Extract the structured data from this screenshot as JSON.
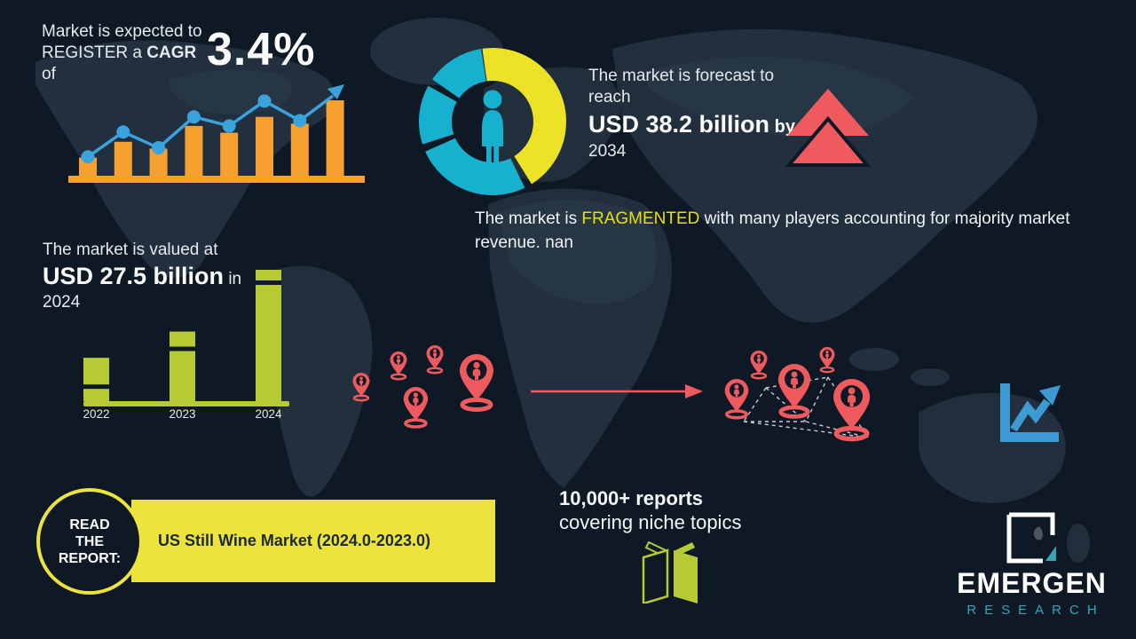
{
  "palette": {
    "background": "#0e1925",
    "map": "#233140",
    "orange": "#f6a02f",
    "blue": "#3aa3dc",
    "teal": "#17b0cf",
    "donut_yellow": "#ece327",
    "coral": "#ee5a5e",
    "green": "#b5ca33",
    "banner_yellow": "#ece33c",
    "highlight_yellow": "#e8e000",
    "logo_teal": "#36a3b8",
    "text": "#e9edef"
  },
  "icons": [
    "person-icon",
    "double-up-arrow-icon",
    "map-pin-icon",
    "line-chart-icon",
    "open-book-icon",
    "logo-mark-icon",
    "trend-arrow-icon",
    "world-map"
  ],
  "cagr": {
    "line1": "Market is expected to",
    "line2_pre": "REGISTER a ",
    "line2_bold": "CAGR",
    "line2_post": " of",
    "value": "3.4%"
  },
  "forecast": {
    "line1": "The market is forecast to",
    "line2": "reach",
    "value": "USD 38.2 billion",
    "by_label": " by",
    "year": "2034"
  },
  "fragmentation": {
    "pre": "The market is ",
    "highlight": "FRAGMENTED",
    "post": " with many players accounting for majority market revenue. nan"
  },
  "valuation": {
    "line1": "The market is valued at",
    "value": "USD 27.5 billion",
    "in_label": " in",
    "year": "2024"
  },
  "report_cta": {
    "circle_lines": [
      "READ",
      "THE",
      "REPORT:"
    ],
    "banner": "US Still Wine Market (2024.0-2023.0)"
  },
  "reports_stat": {
    "line1": "10,000+ reports",
    "line2": "covering niche topics"
  },
  "brand": {
    "name": "EMERGEN",
    "subtitle": "RESEARCH"
  },
  "chart_data": [
    {
      "id": "growth_trend",
      "type": "bar",
      "title": "Stylized growth bar chart with rising trend line and arrow",
      "categories": [
        "",
        "",
        "",
        "",
        "",
        "",
        "",
        ""
      ],
      "series": [
        {
          "name": "bars",
          "color": "#f6a02f",
          "values": [
            24,
            45,
            36,
            66,
            57,
            78,
            69,
            100
          ]
        },
        {
          "name": "trend_line",
          "color": "#3aa3dc",
          "values": [
            25,
            58,
            37,
            78,
            66,
            99,
            73
          ]
        }
      ],
      "ylim": [
        0,
        100
      ],
      "grid": false,
      "legend": false
    },
    {
      "id": "donut_market_share",
      "type": "pie",
      "title": "Stylized donut chart with person icon in center",
      "segments": [
        {
          "color": "#ece327",
          "start_deg": -8,
          "end_deg": 148
        },
        {
          "color": "#17b0cf",
          "start_deg": 154,
          "end_deg": 246
        },
        {
          "color": "#17b0cf",
          "start_deg": 252,
          "end_deg": 299
        },
        {
          "color": "#17b0cf",
          "start_deg": 305,
          "end_deg": 351
        }
      ]
    },
    {
      "id": "valuation_by_year",
      "type": "bar",
      "title": "Market valuation by year",
      "categories": [
        "2022",
        "2023",
        "2024"
      ],
      "values": [
        33,
        53,
        100
      ],
      "stripe_offsets": [
        30,
        17,
        12
      ],
      "ylim": [
        0,
        100
      ],
      "color": "#b5ca33",
      "note": "Market valued at USD 27.5 billion in 2024",
      "grid": false,
      "legend": false
    }
  ]
}
